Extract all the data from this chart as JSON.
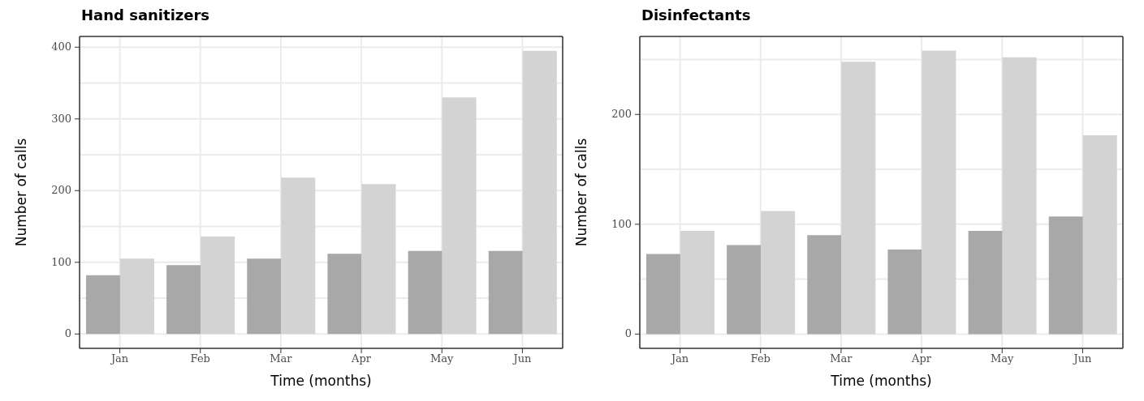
{
  "chart_data": [
    {
      "type": "bar",
      "title": "Hand sanitizers",
      "xlabel": "Time (months)",
      "ylabel": "Number of calls",
      "categories": [
        "Jan",
        "Feb",
        "Mar",
        "Apr",
        "May",
        "Jun"
      ],
      "series": [
        {
          "color": "#a8a8a8",
          "values": [
            82,
            96,
            105,
            112,
            116,
            116
          ]
        },
        {
          "color": "#d3d3d3",
          "values": [
            105,
            136,
            218,
            209,
            330,
            395
          ]
        }
      ],
      "ylim": [
        -20,
        415
      ],
      "yticks": [
        0,
        {
          "value": 50,
          "label": null
        },
        100,
        {
          "value": 150,
          "label": null
        },
        200,
        {
          "value": 250,
          "label": null
        },
        300,
        {
          "value": 350,
          "label": null
        },
        400
      ],
      "grid": true,
      "legend": false
    },
    {
      "type": "bar",
      "title": "Disinfectants",
      "xlabel": "Time (months)",
      "ylabel": "Number of calls",
      "categories": [
        "Jan",
        "Feb",
        "Mar",
        "Apr",
        "May",
        "Jun"
      ],
      "series": [
        {
          "color": "#a8a8a8",
          "values": [
            73,
            81,
            90,
            77,
            94,
            107
          ]
        },
        {
          "color": "#d3d3d3",
          "values": [
            94,
            112,
            248,
            258,
            252,
            181
          ]
        }
      ],
      "ylim": [
        -13,
        271
      ],
      "yticks": [
        0,
        {
          "value": 50,
          "label": null
        },
        100,
        {
          "value": 150,
          "label": null
        },
        200,
        {
          "value": 250,
          "label": null
        }
      ],
      "grid": true,
      "legend": false
    }
  ]
}
